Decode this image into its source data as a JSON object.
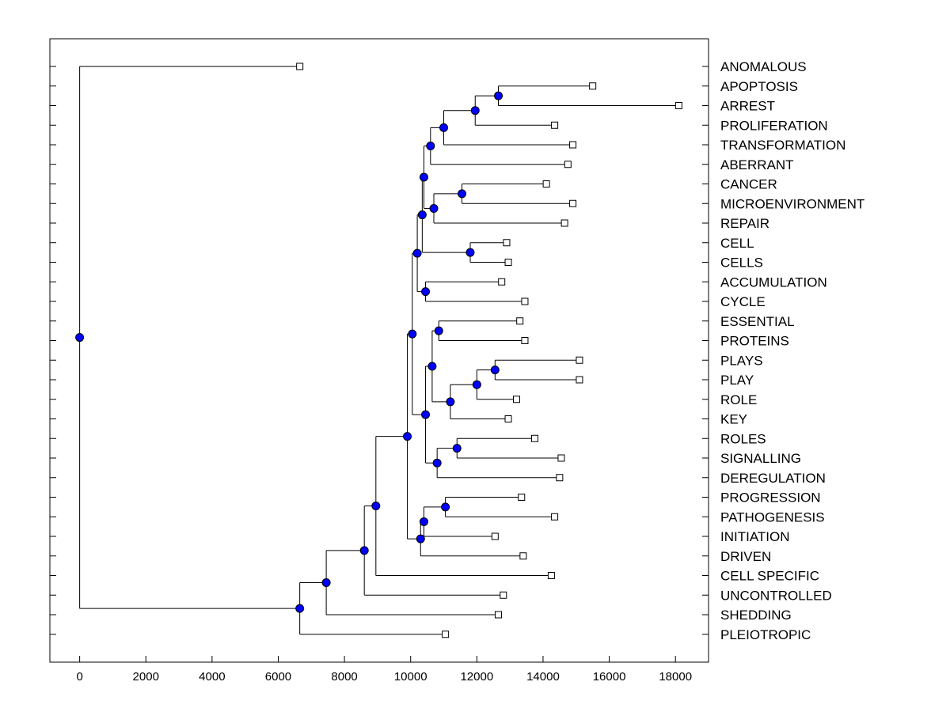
{
  "chart_data": {
    "type": "dendrogram",
    "title": "",
    "xlabel": "",
    "ylabel": "",
    "xlim": [
      -900,
      19000
    ],
    "x_ticks": [
      0,
      2000,
      4000,
      6000,
      8000,
      10000,
      12000,
      14000,
      16000,
      18000
    ],
    "grid": false,
    "colors": {
      "node_fill": "#0000ff",
      "line": "#000000",
      "leaf_fill": "#ffffff"
    },
    "leaves": [
      {
        "label": "ANOMALOUS",
        "x": 6650
      },
      {
        "label": "APOPTOSIS",
        "x": 15500
      },
      {
        "label": "ARREST",
        "x": 18100
      },
      {
        "label": "PROLIFERATION",
        "x": 14350
      },
      {
        "label": "TRANSFORMATION",
        "x": 14900
      },
      {
        "label": "ABERRANT",
        "x": 14750
      },
      {
        "label": "CANCER",
        "x": 14100
      },
      {
        "label": "MICROENVIRONMENT",
        "x": 14900
      },
      {
        "label": "REPAIR",
        "x": 14650
      },
      {
        "label": "CELL",
        "x": 12900
      },
      {
        "label": "CELLS",
        "x": 12950
      },
      {
        "label": "ACCUMULATION",
        "x": 12750
      },
      {
        "label": "CYCLE",
        "x": 13450
      },
      {
        "label": "ESSENTIAL",
        "x": 13300
      },
      {
        "label": "PROTEINS",
        "x": 13450
      },
      {
        "label": "PLAYS",
        "x": 15100
      },
      {
        "label": "PLAY",
        "x": 15100
      },
      {
        "label": "ROLE",
        "x": 13200
      },
      {
        "label": "KEY",
        "x": 12950
      },
      {
        "label": "ROLES",
        "x": 13750
      },
      {
        "label": "SIGNALLING",
        "x": 14550
      },
      {
        "label": "DEREGULATION",
        "x": 14500
      },
      {
        "label": "PROGRESSION",
        "x": 13350
      },
      {
        "label": "PATHOGENESIS",
        "x": 14350
      },
      {
        "label": "INITIATION",
        "x": 12550
      },
      {
        "label": "DRIVEN",
        "x": 13400
      },
      {
        "label": "CELL SPECIFIC",
        "x": 14250
      },
      {
        "label": "UNCONTROLLED",
        "x": 12800
      },
      {
        "label": "SHEDDING",
        "x": 12650
      },
      {
        "label": "PLEIOTROPIC",
        "x": 11050
      }
    ],
    "merges": [
      {
        "id": "n_app_arr",
        "x": 12650,
        "children": [
          "L1",
          "L2"
        ]
      },
      {
        "id": "n_prolif",
        "x": 11950,
        "children": [
          "n_app_arr",
          "L3"
        ]
      },
      {
        "id": "n_transf",
        "x": 11000,
        "children": [
          "n_prolif",
          "L4"
        ]
      },
      {
        "id": "n_aberr",
        "x": 10600,
        "children": [
          "n_transf",
          "L5"
        ]
      },
      {
        "id": "n_can_mic",
        "x": 11550,
        "children": [
          "L6",
          "L7"
        ]
      },
      {
        "id": "n_repair",
        "x": 10700,
        "children": [
          "n_can_mic",
          "L8"
        ]
      },
      {
        "id": "n_top7",
        "x": 10400,
        "children": [
          "n_aberr",
          "n_repair"
        ]
      },
      {
        "id": "n_cell_cells",
        "x": 11800,
        "children": [
          "L9",
          "L10"
        ]
      },
      {
        "id": "n_top9",
        "x": 10350,
        "children": [
          "n_top7",
          "n_cell_cells"
        ]
      },
      {
        "id": "n_acc_cyc",
        "x": 10450,
        "children": [
          "L11",
          "L12"
        ]
      },
      {
        "id": "n_top11",
        "x": 10200,
        "children": [
          "n_top9",
          "n_acc_cyc"
        ]
      },
      {
        "id": "n_ess_prot",
        "x": 10850,
        "children": [
          "L13",
          "L14"
        ]
      },
      {
        "id": "n_plays_play",
        "x": 12550,
        "children": [
          "L15",
          "L16"
        ]
      },
      {
        "id": "n_role",
        "x": 12000,
        "children": [
          "n_plays_play",
          "L17"
        ]
      },
      {
        "id": "n_key",
        "x": 11200,
        "children": [
          "n_role",
          "L18"
        ]
      },
      {
        "id": "n_ess_key",
        "x": 10650,
        "children": [
          "n_ess_prot",
          "n_key"
        ]
      },
      {
        "id": "n_roles_sig",
        "x": 11400,
        "children": [
          "L19",
          "L20"
        ]
      },
      {
        "id": "n_dereg",
        "x": 10800,
        "children": [
          "n_roles_sig",
          "L21"
        ]
      },
      {
        "id": "n_mid",
        "x": 10450,
        "children": [
          "n_ess_key",
          "n_dereg"
        ]
      },
      {
        "id": "n_upper",
        "x": 10050,
        "children": [
          "n_top11",
          "n_mid"
        ]
      },
      {
        "id": "n_prog_path",
        "x": 11050,
        "children": [
          "L22",
          "L23"
        ]
      },
      {
        "id": "n_init",
        "x": 10400,
        "children": [
          "n_prog_path",
          "L24"
        ]
      },
      {
        "id": "n_driven",
        "x": 10300,
        "children": [
          "n_init",
          "L25"
        ]
      },
      {
        "id": "n_big",
        "x": 9900,
        "children": [
          "n_upper",
          "n_driven"
        ]
      },
      {
        "id": "n_cellspec",
        "x": 8950,
        "children": [
          "n_big",
          "L26"
        ]
      },
      {
        "id": "n_uncont",
        "x": 8600,
        "children": [
          "n_cellspec",
          "L27"
        ]
      },
      {
        "id": "n_shed",
        "x": 7450,
        "children": [
          "n_uncont",
          "L28"
        ]
      },
      {
        "id": "n_pleio",
        "x": 6650,
        "children": [
          "n_shed",
          "L29"
        ]
      },
      {
        "id": "n_root",
        "x": 0,
        "children": [
          "L0",
          "n_pleio"
        ]
      }
    ]
  }
}
